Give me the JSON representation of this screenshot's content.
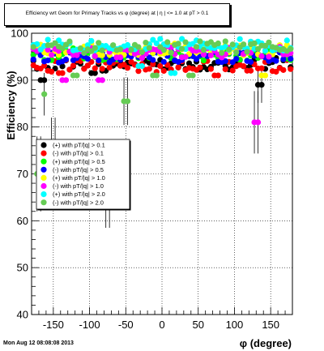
{
  "title": "Efficiency wrt Geom for Primary Tracks vs φ (degree) at | η | <= 1.0 at pT > 0.1",
  "footer_timestamp": "Mon Aug 12 08:08:08 2013",
  "chart_data": {
    "type": "scatter",
    "xlabel": "φ (degree)",
    "ylabel": "Efficiency (%)",
    "xlim": [
      -180,
      180
    ],
    "ylim": [
      40,
      100
    ],
    "xticks": [
      -150,
      -100,
      -50,
      0,
      50,
      100,
      150
    ],
    "yticks": [
      40,
      50,
      60,
      70,
      80,
      90,
      100
    ],
    "grid": true,
    "legend_position": "center-left",
    "series": [
      {
        "name": "(+) with pT/|q| > 0.1",
        "color": "#000000",
        "base": 93.5,
        "outliers": [
          [
            -165,
            90.0
          ],
          [
            -95,
            91.5
          ],
          [
            -80,
            92.0
          ],
          [
            135,
            89.0
          ]
        ]
      },
      {
        "name": "(-) with pT/|q| > 0.1",
        "color": "#ff0000",
        "base": 93.0,
        "outliers": [
          [
            -140,
            91.5
          ],
          [
            75,
            91.0
          ],
          [
            120,
            92.0
          ]
        ]
      },
      {
        "name": "(+) with pT/|q| > 0.5",
        "color": "#00ff00",
        "base": 95.5,
        "outliers": [
          [
            -170,
            96.0
          ]
        ]
      },
      {
        "name": "(-) with pT/|q| > 0.5",
        "color": "#0000ff",
        "base": 95.0,
        "outliers": []
      },
      {
        "name": "(+) with pT/|q| > 1.0",
        "color": "#ffff00",
        "base": 96.5,
        "outliers": [
          [
            140,
            91.0
          ]
        ]
      },
      {
        "name": "(-) with pT/|q| > 1.0",
        "color": "#ff00ff",
        "base": 96.0,
        "outliers": [
          [
            -135,
            90.0
          ],
          [
            -85,
            90.0
          ],
          [
            130,
            81.0
          ]
        ]
      },
      {
        "name": "(+) with pT/|q| > 2.0",
        "color": "#00ffff",
        "base": 97.5,
        "outliers": [
          [
            -150,
            74.0
          ],
          [
            15,
            91.5
          ],
          [
            -30,
            93.0
          ]
        ]
      },
      {
        "name": "(-) with pT/|q| > 2.0",
        "color": "#66cc55",
        "base": 97.0,
        "outliers": [
          [
            -170,
            70.0
          ],
          [
            -165,
            87.0
          ],
          [
            -75,
            66.5
          ],
          [
            -50,
            85.5
          ],
          [
            -10,
            91.0
          ],
          [
            40,
            91.0
          ],
          [
            -120,
            91.0
          ]
        ]
      }
    ]
  }
}
